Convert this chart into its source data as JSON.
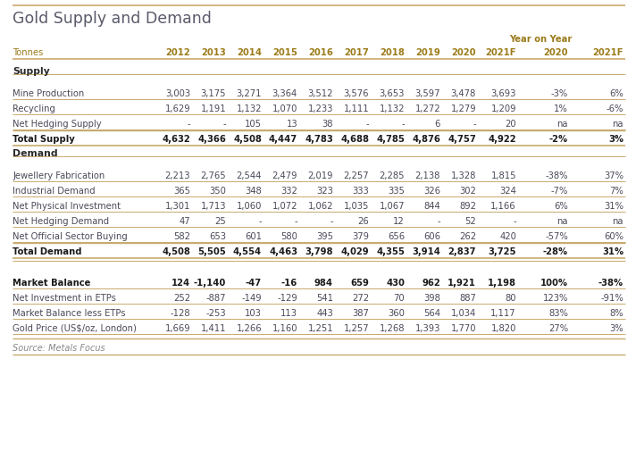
{
  "title": "Gold Supply and Demand",
  "subtitle_label": "Tonnes",
  "source": "Source: Metals Focus",
  "year_on_year_label": "Year on Year",
  "sections": [
    {
      "section_title": "Supply",
      "rows": [
        {
          "label": "Mine Production",
          "values": [
            "3,003",
            "3,175",
            "3,271",
            "3,364",
            "3,512",
            "3,576",
            "3,653",
            "3,597",
            "3,478",
            "3,693",
            "-3%",
            "6%"
          ],
          "bold": false
        },
        {
          "label": "Recycling",
          "values": [
            "1,629",
            "1,191",
            "1,132",
            "1,070",
            "1,233",
            "1,111",
            "1,132",
            "1,272",
            "1,279",
            "1,209",
            "1%",
            "-6%"
          ],
          "bold": false
        },
        {
          "label": "Net Hedging Supply",
          "values": [
            "-",
            "-",
            "105",
            "13",
            "38",
            "-",
            "-",
            "6",
            "-",
            "20",
            "na",
            "na"
          ],
          "bold": false
        },
        {
          "label": "Total Supply",
          "values": [
            "4,632",
            "4,366",
            "4,508",
            "4,447",
            "4,783",
            "4,688",
            "4,785",
            "4,876",
            "4,757",
            "4,922",
            "-2%",
            "3%"
          ],
          "bold": true
        }
      ]
    },
    {
      "section_title": "Demand",
      "rows": [
        {
          "label": "Jewellery Fabrication",
          "values": [
            "2,213",
            "2,765",
            "2,544",
            "2,479",
            "2,019",
            "2,257",
            "2,285",
            "2,138",
            "1,328",
            "1,815",
            "-38%",
            "37%"
          ],
          "bold": false
        },
        {
          "label": "Industrial Demand",
          "values": [
            "365",
            "350",
            "348",
            "332",
            "323",
            "333",
            "335",
            "326",
            "302",
            "324",
            "-7%",
            "7%"
          ],
          "bold": false
        },
        {
          "label": "Net Physical Investment",
          "values": [
            "1,301",
            "1,713",
            "1,060",
            "1,072",
            "1,062",
            "1,035",
            "1,067",
            "844",
            "892",
            "1,166",
            "6%",
            "31%"
          ],
          "bold": false
        },
        {
          "label": "Net Hedging Demand",
          "values": [
            "47",
            "25",
            "-",
            "-",
            "-",
            "26",
            "12",
            "-",
            "52",
            "-",
            "na",
            "na"
          ],
          "bold": false
        },
        {
          "label": "Net Official Sector Buying",
          "values": [
            "582",
            "653",
            "601",
            "580",
            "395",
            "379",
            "656",
            "606",
            "262",
            "420",
            "-57%",
            "60%"
          ],
          "bold": false
        },
        {
          "label": "Total Demand",
          "values": [
            "4,508",
            "5,505",
            "4,554",
            "4,463",
            "3,798",
            "4,029",
            "4,355",
            "3,914",
            "2,837",
            "3,725",
            "-28%",
            "31%"
          ],
          "bold": true
        }
      ]
    },
    {
      "section_title": "",
      "rows": [
        {
          "label": "Market Balance",
          "values": [
            "124",
            "-1,140",
            "-47",
            "-16",
            "984",
            "659",
            "430",
            "962",
            "1,921",
            "1,198",
            "100%",
            "-38%"
          ],
          "bold": true
        },
        {
          "label": "Net Investment in ETPs",
          "values": [
            "252",
            "-887",
            "-149",
            "-129",
            "541",
            "272",
            "70",
            "398",
            "887",
            "80",
            "123%",
            "-91%"
          ],
          "bold": false
        },
        {
          "label": "Market Balance less ETPs",
          "values": [
            "-128",
            "-253",
            "103",
            "113",
            "443",
            "387",
            "360",
            "564",
            "1,034",
            "1,117",
            "83%",
            "8%"
          ],
          "bold": false
        },
        {
          "label": "Gold Price (US$/oz, London)",
          "values": [
            "1,669",
            "1,411",
            "1,266",
            "1,160",
            "1,251",
            "1,257",
            "1,268",
            "1,393",
            "1,770",
            "1,820",
            "27%",
            "3%"
          ],
          "bold": false
        }
      ]
    }
  ],
  "bg_color": "#ffffff",
  "title_color": "#5a5a6a",
  "header_color": "#9b7b1a",
  "section_title_color": "#2a2a2a",
  "bold_row_color": "#1a1a1a",
  "normal_row_color": "#4a4a5a",
  "line_color": "#c8aa6e",
  "source_color": "#888888"
}
